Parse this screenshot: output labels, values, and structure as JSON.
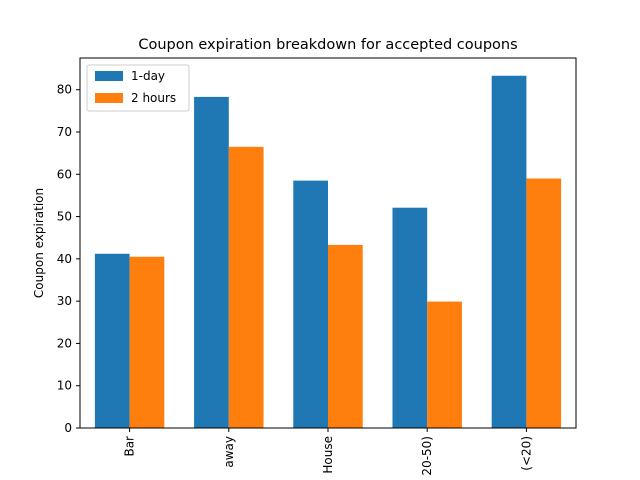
{
  "chart_data": {
    "type": "bar",
    "title": "Coupon expiration breakdown for accepted coupons",
    "xlabel": "",
    "ylabel": "Coupon expiration",
    "categories": [
      "Bar",
      "away",
      "House",
      "20-50)",
      "(<20)"
    ],
    "series": [
      {
        "name": "1-day",
        "color": "#1f77b4",
        "values": [
          41.2,
          78.3,
          58.5,
          52.1,
          83.3
        ]
      },
      {
        "name": "2 hours",
        "color": "#ff7f0e",
        "values": [
          40.5,
          66.5,
          43.3,
          29.9,
          59.0
        ]
      }
    ],
    "ylim": [
      0,
      87.5
    ],
    "yticks": [
      0,
      10,
      20,
      30,
      40,
      50,
      60,
      70,
      80
    ],
    "legend": "upper-left",
    "grid": false
  }
}
